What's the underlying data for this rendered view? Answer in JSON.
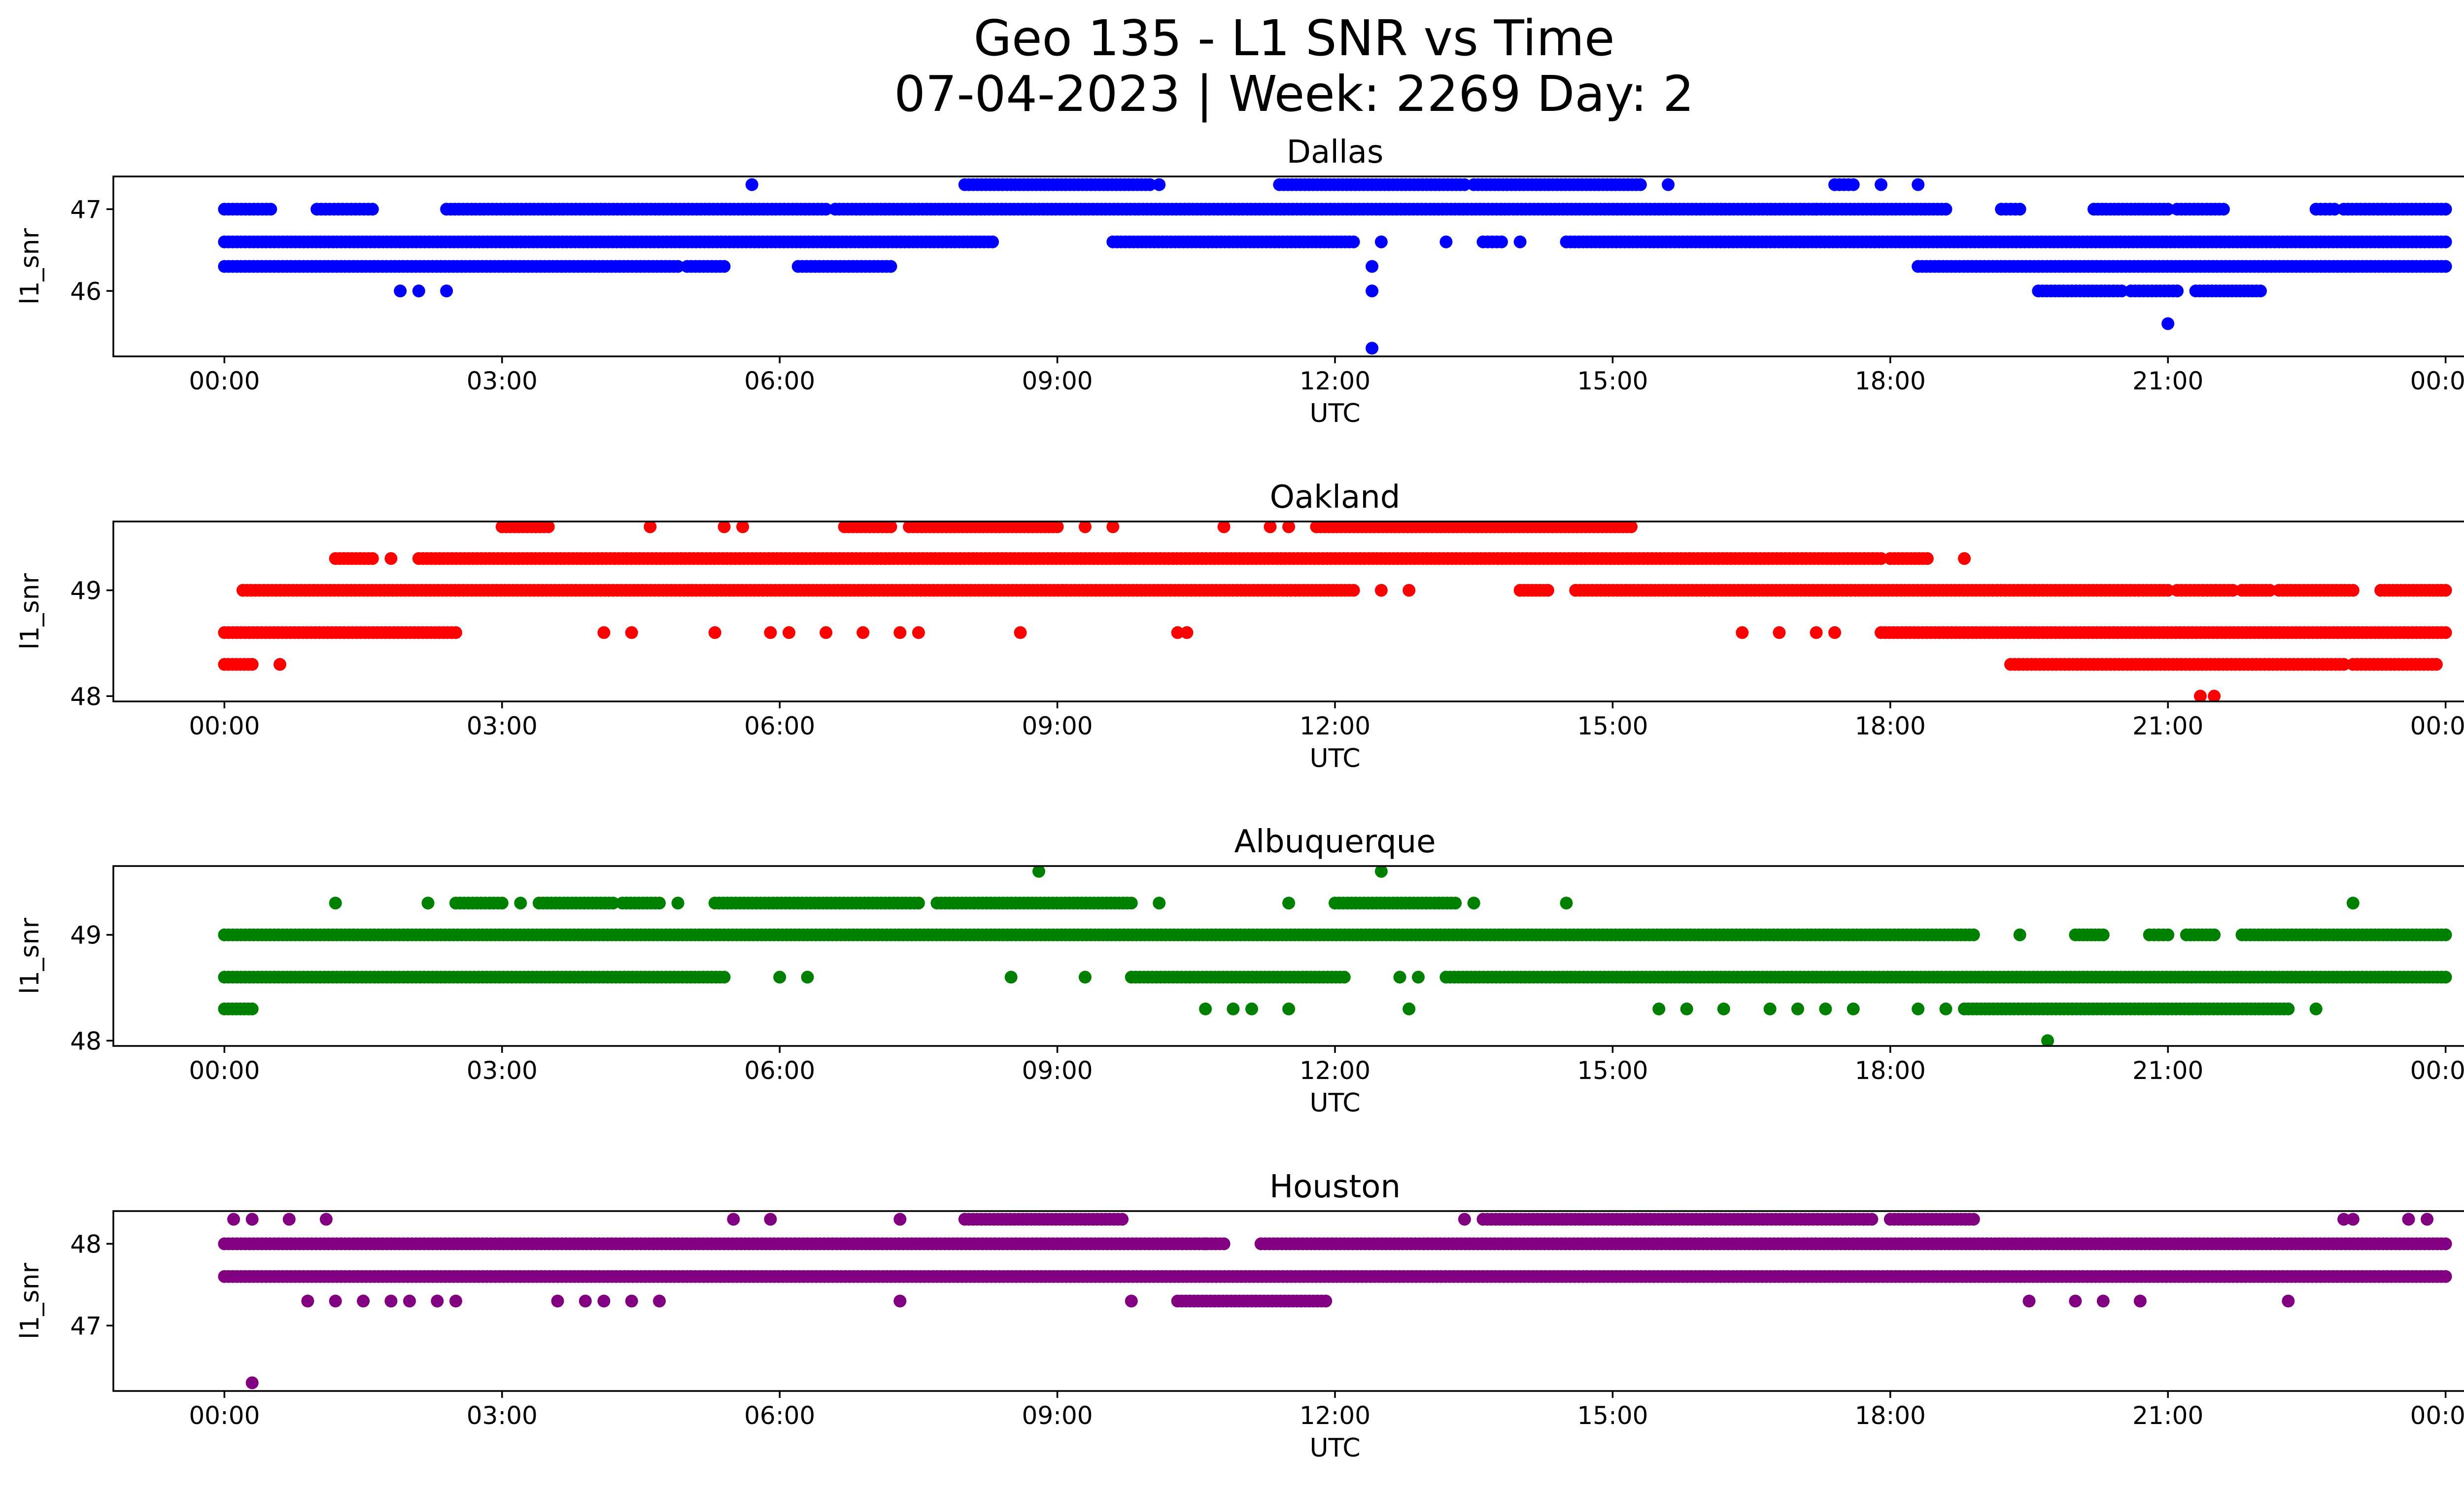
{
  "chart_data": {
    "type": "scatter",
    "title_line1": "Geo 135 - L1 SNR vs Time",
    "title_line2": "07-04-2023 | Week: 2269 Day: 2",
    "xlabel": "UTC",
    "ylabel": "l1_snr",
    "x_tick_labels": [
      "00:00",
      "03:00",
      "06:00",
      "09:00",
      "12:00",
      "15:00",
      "18:00",
      "21:00",
      "00:00"
    ],
    "x_tick_hours": [
      0,
      3,
      6,
      9,
      12,
      15,
      18,
      21,
      24
    ],
    "xlim_hours": [
      -1.2,
      25.2
    ],
    "panels": [
      {
        "name": "Dallas",
        "color": "#0000ff",
        "ylim": [
          45.2,
          47.4
        ],
        "yticks": [
          46,
          47
        ],
        "ytick_labels": [
          "46",
          "47"
        ],
        "runs": [
          {
            "y": 46.3,
            "segments": [
              [
                0.0,
                4.9
              ],
              [
                5.0,
                5.4
              ],
              [
                6.2,
                7.2
              ],
              [
                18.3,
                24.0
              ]
            ]
          },
          {
            "y": 46.6,
            "segments": [
              [
                0.0,
                8.3
              ],
              [
                9.6,
                12.2
              ],
              [
                13.6,
                13.8
              ],
              [
                14.5,
                24.0
              ]
            ]
          },
          {
            "y": 47.0,
            "segments": [
              [
                0.0,
                0.5
              ],
              [
                1.0,
                1.6
              ],
              [
                2.4,
                6.5
              ],
              [
                6.6,
                18.6
              ],
              [
                19.2,
                19.4
              ],
              [
                20.2,
                21.0
              ],
              [
                21.1,
                21.6
              ],
              [
                22.6,
                22.8
              ],
              [
                22.9,
                24.0
              ]
            ]
          },
          {
            "y": 47.3,
            "segments": [
              [
                8.0,
                10.0
              ],
              [
                11.4,
                13.4
              ],
              [
                13.5,
                15.3
              ],
              [
                17.4,
                17.6
              ]
            ]
          },
          {
            "y": 46.0,
            "segments": [
              [
                19.6,
                20.5
              ],
              [
                20.6,
                21.1
              ],
              [
                21.3,
                22.0
              ]
            ]
          }
        ],
        "points": [
          {
            "x": 1.9,
            "y": 46.0
          },
          {
            "x": 2.1,
            "y": 46.0
          },
          {
            "x": 2.4,
            "y": 46.0
          },
          {
            "x": 5.7,
            "y": 47.3
          },
          {
            "x": 10.1,
            "y": 47.3
          },
          {
            "x": 15.6,
            "y": 47.3
          },
          {
            "x": 17.9,
            "y": 47.3
          },
          {
            "x": 18.3,
            "y": 47.3
          },
          {
            "x": 12.4,
            "y": 46.3
          },
          {
            "x": 12.4,
            "y": 46.0
          },
          {
            "x": 12.4,
            "y": 45.3
          },
          {
            "x": 12.5,
            "y": 46.6
          },
          {
            "x": 13.2,
            "y": 46.6
          },
          {
            "x": 14.0,
            "y": 46.6
          },
          {
            "x": 17.2,
            "y": 47.0
          },
          {
            "x": 21.0,
            "y": 45.6
          }
        ]
      },
      {
        "name": "Oakland",
        "color": "#ff0000",
        "ylim": [
          47.95,
          49.65
        ],
        "yticks": [
          48,
          49
        ],
        "ytick_labels": [
          "48",
          "49"
        ],
        "runs": [
          {
            "y": 48.3,
            "segments": [
              [
                0.0,
                0.3
              ],
              [
                19.3,
                22.9
              ],
              [
                23.0,
                23.9
              ]
            ]
          },
          {
            "y": 48.6,
            "segments": [
              [
                0.0,
                2.5
              ],
              [
                17.9,
                24.0
              ]
            ]
          },
          {
            "y": 49.0,
            "segments": [
              [
                0.2,
                12.2
              ],
              [
                14.0,
                14.3
              ],
              [
                14.6,
                21.0
              ],
              [
                21.1,
                21.7
              ],
              [
                21.8,
                22.1
              ],
              [
                22.2,
                23.0
              ],
              [
                23.3,
                24.0
              ]
            ]
          },
          {
            "y": 49.3,
            "segments": [
              [
                1.2,
                1.6
              ],
              [
                2.1,
                17.9
              ],
              [
                18.0,
                18.4
              ]
            ]
          },
          {
            "y": 49.6,
            "segments": [
              [
                3.0,
                3.5
              ],
              [
                6.7,
                7.2
              ],
              [
                7.4,
                9.0
              ],
              [
                11.8,
                15.2
              ]
            ]
          }
        ],
        "points": [
          {
            "x": 0.6,
            "y": 48.3
          },
          {
            "x": 1.8,
            "y": 49.3
          },
          {
            "x": 18.8,
            "y": 49.3
          },
          {
            "x": 4.1,
            "y": 48.6
          },
          {
            "x": 4.4,
            "y": 48.6
          },
          {
            "x": 5.3,
            "y": 48.6
          },
          {
            "x": 5.9,
            "y": 48.6
          },
          {
            "x": 6.1,
            "y": 48.6
          },
          {
            "x": 6.5,
            "y": 48.6
          },
          {
            "x": 6.9,
            "y": 48.6
          },
          {
            "x": 7.3,
            "y": 48.6
          },
          {
            "x": 7.5,
            "y": 48.6
          },
          {
            "x": 8.6,
            "y": 48.6
          },
          {
            "x": 10.3,
            "y": 48.6
          },
          {
            "x": 10.4,
            "y": 48.6
          },
          {
            "x": 16.4,
            "y": 48.6
          },
          {
            "x": 16.8,
            "y": 48.6
          },
          {
            "x": 17.2,
            "y": 48.6
          },
          {
            "x": 17.4,
            "y": 48.6
          },
          {
            "x": 4.6,
            "y": 49.6
          },
          {
            "x": 5.4,
            "y": 49.6
          },
          {
            "x": 5.6,
            "y": 49.6
          },
          {
            "x": 9.3,
            "y": 49.6
          },
          {
            "x": 9.6,
            "y": 49.6
          },
          {
            "x": 10.8,
            "y": 49.6
          },
          {
            "x": 11.3,
            "y": 49.6
          },
          {
            "x": 11.5,
            "y": 49.6
          },
          {
            "x": 12.5,
            "y": 49.0
          },
          {
            "x": 12.8,
            "y": 49.0
          },
          {
            "x": 21.35,
            "y": 48.0
          },
          {
            "x": 21.5,
            "y": 48.0
          }
        ]
      },
      {
        "name": "Albuquerque",
        "color": "#008000",
        "ylim": [
          47.95,
          49.65
        ],
        "yticks": [
          48,
          49
        ],
        "ytick_labels": [
          "48",
          "49"
        ],
        "runs": [
          {
            "y": 48.3,
            "segments": [
              [
                0.0,
                0.3
              ],
              [
                18.8,
                22.3
              ]
            ]
          },
          {
            "y": 48.6,
            "segments": [
              [
                0.0,
                5.4
              ],
              [
                9.8,
                12.1
              ],
              [
                13.2,
                24.0
              ]
            ]
          },
          {
            "y": 49.0,
            "segments": [
              [
                0.0,
                18.9
              ],
              [
                20.0,
                20.3
              ],
              [
                20.8,
                21.0
              ],
              [
                21.2,
                21.5
              ],
              [
                21.8,
                24.0
              ]
            ]
          },
          {
            "y": 49.3,
            "segments": [
              [
                2.5,
                3.0
              ],
              [
                3.4,
                4.2
              ],
              [
                4.3,
                4.7
              ],
              [
                5.3,
                7.5
              ],
              [
                7.7,
                9.8
              ],
              [
                12.0,
                13.3
              ]
            ]
          }
        ],
        "points": [
          {
            "x": 8.8,
            "y": 49.6
          },
          {
            "x": 12.5,
            "y": 49.6
          },
          {
            "x": 1.2,
            "y": 49.3
          },
          {
            "x": 2.2,
            "y": 49.3
          },
          {
            "x": 3.2,
            "y": 49.3
          },
          {
            "x": 4.9,
            "y": 49.3
          },
          {
            "x": 10.1,
            "y": 49.3
          },
          {
            "x": 11.5,
            "y": 49.3
          },
          {
            "x": 13.5,
            "y": 49.3
          },
          {
            "x": 14.5,
            "y": 49.3
          },
          {
            "x": 23.0,
            "y": 49.3
          },
          {
            "x": 6.0,
            "y": 48.6
          },
          {
            "x": 6.3,
            "y": 48.6
          },
          {
            "x": 8.5,
            "y": 48.6
          },
          {
            "x": 9.3,
            "y": 48.6
          },
          {
            "x": 12.7,
            "y": 48.6
          },
          {
            "x": 12.9,
            "y": 48.6
          },
          {
            "x": 10.6,
            "y": 48.3
          },
          {
            "x": 10.9,
            "y": 48.3
          },
          {
            "x": 11.1,
            "y": 48.3
          },
          {
            "x": 11.5,
            "y": 48.3
          },
          {
            "x": 12.8,
            "y": 48.3
          },
          {
            "x": 15.5,
            "y": 48.3
          },
          {
            "x": 15.8,
            "y": 48.3
          },
          {
            "x": 16.2,
            "y": 48.3
          },
          {
            "x": 16.7,
            "y": 48.3
          },
          {
            "x": 17.0,
            "y": 48.3
          },
          {
            "x": 17.3,
            "y": 48.3
          },
          {
            "x": 17.6,
            "y": 48.3
          },
          {
            "x": 18.3,
            "y": 48.3
          },
          {
            "x": 18.6,
            "y": 48.3
          },
          {
            "x": 22.6,
            "y": 48.3
          },
          {
            "x": 19.4,
            "y": 49.0
          },
          {
            "x": 19.7,
            "y": 48.0
          }
        ]
      },
      {
        "name": "Houston",
        "color": "#800080",
        "ylim": [
          46.2,
          48.4
        ],
        "yticks": [
          47,
          48
        ],
        "ytick_labels": [
          "47",
          "48"
        ],
        "runs": [
          {
            "y": 47.6,
            "segments": [
              [
                0.0,
                24.0
              ]
            ]
          },
          {
            "y": 48.0,
            "segments": [
              [
                0.0,
                10.8
              ],
              [
                11.2,
                24.0
              ]
            ]
          },
          {
            "y": 48.3,
            "segments": [
              [
                8.0,
                9.7
              ],
              [
                13.6,
                17.8
              ],
              [
                18.0,
                18.9
              ]
            ]
          },
          {
            "y": 47.3,
            "segments": [
              [
                10.3,
                11.9
              ]
            ]
          }
        ],
        "points": [
          {
            "x": 0.1,
            "y": 48.3
          },
          {
            "x": 0.3,
            "y": 48.3
          },
          {
            "x": 0.7,
            "y": 48.3
          },
          {
            "x": 1.1,
            "y": 48.3
          },
          {
            "x": 5.5,
            "y": 48.3
          },
          {
            "x": 5.9,
            "y": 48.3
          },
          {
            "x": 7.3,
            "y": 48.3
          },
          {
            "x": 13.4,
            "y": 48.3
          },
          {
            "x": 22.9,
            "y": 48.3
          },
          {
            "x": 23.0,
            "y": 48.3
          },
          {
            "x": 23.6,
            "y": 48.3
          },
          {
            "x": 23.8,
            "y": 48.3
          },
          {
            "x": 0.9,
            "y": 47.3
          },
          {
            "x": 1.2,
            "y": 47.3
          },
          {
            "x": 1.5,
            "y": 47.3
          },
          {
            "x": 1.8,
            "y": 47.3
          },
          {
            "x": 2.0,
            "y": 47.3
          },
          {
            "x": 2.3,
            "y": 47.3
          },
          {
            "x": 2.5,
            "y": 47.3
          },
          {
            "x": 3.6,
            "y": 47.3
          },
          {
            "x": 3.9,
            "y": 47.3
          },
          {
            "x": 4.1,
            "y": 47.3
          },
          {
            "x": 4.4,
            "y": 47.3
          },
          {
            "x": 4.7,
            "y": 47.3
          },
          {
            "x": 7.3,
            "y": 47.3
          },
          {
            "x": 9.8,
            "y": 47.3
          },
          {
            "x": 19.5,
            "y": 47.3
          },
          {
            "x": 20.0,
            "y": 47.3
          },
          {
            "x": 20.3,
            "y": 47.3
          },
          {
            "x": 20.7,
            "y": 47.3
          },
          {
            "x": 22.3,
            "y": 47.3
          },
          {
            "x": 10.6,
            "y": 48.0
          },
          {
            "x": 0.3,
            "y": 46.3
          }
        ]
      }
    ]
  }
}
